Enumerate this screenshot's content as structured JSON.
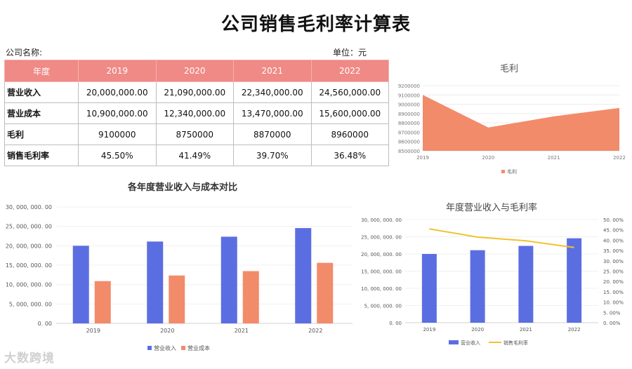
{
  "page": {
    "title": "公司销售毛利率计算表",
    "company_label": "公司名称:",
    "unit_label": "单位：元",
    "watermark": "大数跨境"
  },
  "table": {
    "headers": [
      "年度",
      "2019",
      "2020",
      "2021",
      "2022"
    ],
    "rows": [
      {
        "label": "营业收入",
        "values": [
          "20,000,000.00",
          "21,090,000.00",
          "22,340,000.00",
          "24,560,000.00"
        ]
      },
      {
        "label": "营业成本",
        "values": [
          "10,900,000.00",
          "12,340,000.00",
          "13,470,000.00",
          "15,600,000.00"
        ]
      },
      {
        "label": "毛利",
        "values": [
          "9100000",
          "8750000",
          "8870000",
          "8960000"
        ]
      },
      {
        "label": "销售毛利率",
        "values": [
          "45.50%",
          "41.49%",
          "39.70%",
          "36.48%"
        ]
      }
    ]
  },
  "colors": {
    "header_bg": "#ef8a86",
    "area": "#f28b6a",
    "revenue": "#5b6ee1",
    "cost": "#f28b6a",
    "margin_line": "#f2c12e"
  },
  "chart_data": [
    {
      "type": "area",
      "title": "毛利",
      "categories": [
        "2019",
        "2020",
        "2021",
        "2022"
      ],
      "series": [
        {
          "name": "毛利",
          "values": [
            9100000,
            8750000,
            8870000,
            8960000
          ]
        }
      ],
      "ylim": [
        8500000,
        9200000
      ],
      "yticks": [
        "8500000",
        "8600000",
        "8700000",
        "8800000",
        "8900000",
        "9000000",
        "9100000",
        "9200000"
      ],
      "grid": true,
      "legend": "bottom"
    },
    {
      "type": "bar",
      "title": "各年度营业收入与成本对比",
      "categories": [
        "2019",
        "2020",
        "2021",
        "2022"
      ],
      "series": [
        {
          "name": "营业收入",
          "values": [
            20000000,
            21090000,
            22340000,
            24560000
          ]
        },
        {
          "name": "营业成本",
          "values": [
            10900000,
            12340000,
            13470000,
            15600000
          ]
        }
      ],
      "ylim": [
        0,
        30000000
      ],
      "yticks": [
        "0. 00",
        "5, 000, 000. 00",
        "10, 000, 000. 00",
        "15, 000, 000. 00",
        "20, 000, 000. 00",
        "25, 000, 000. 00",
        "30, 000, 000. 00"
      ],
      "grid": true,
      "legend": "bottom"
    },
    {
      "type": "bar",
      "title": "年度营业收入与毛利率",
      "categories": [
        "2019",
        "2020",
        "2021",
        "2022"
      ],
      "series": [
        {
          "name": "营业收入",
          "type": "bar",
          "values": [
            20000000,
            21090000,
            22340000,
            24560000
          ]
        },
        {
          "name": "销售毛利率",
          "type": "line",
          "axis": "right",
          "values": [
            45.5,
            41.49,
            39.7,
            36.48
          ]
        }
      ],
      "ylim": [
        0,
        30000000
      ],
      "y2lim": [
        0,
        50
      ],
      "yticks": [
        "0. 00",
        "5, 000, 000. 00",
        "10, 000, 000. 00",
        "15, 000, 000. 00",
        "20, 000, 000. 00",
        "25, 000, 000. 00",
        "30, 000, 000. 00"
      ],
      "y2ticks": [
        "0. 00%",
        "5. 00%",
        "10. 00%",
        "15. 00%",
        "20. 00%",
        "25. 00%",
        "30. 00%",
        "35. 00%",
        "40. 00%",
        "45. 00%",
        "50. 00%"
      ],
      "grid": true,
      "legend": "bottom"
    }
  ]
}
